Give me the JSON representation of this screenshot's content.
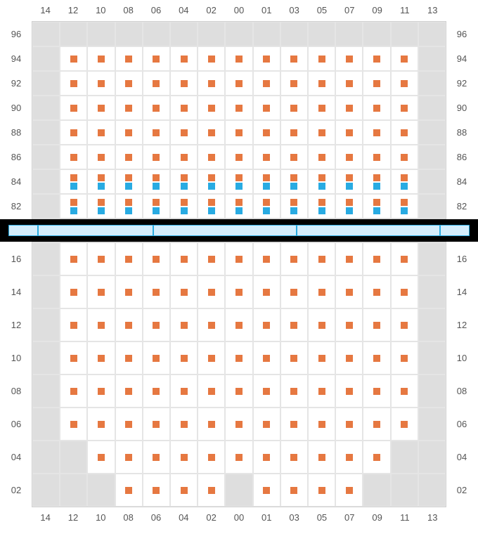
{
  "layout": {
    "cols": [
      "14",
      "12",
      "10",
      "08",
      "06",
      "04",
      "02",
      "00",
      "01",
      "03",
      "05",
      "07",
      "09",
      "11",
      "13"
    ],
    "colors": {
      "orange": "#e67841",
      "blue": "#29abe2",
      "bg": "#dedede",
      "cellBg": "#ffffff",
      "line": "#e5e5e5",
      "text": "#555555",
      "divider": "#000000",
      "stripFill": "#d4edfc"
    }
  },
  "upper": {
    "rowLabels": [
      "96",
      "94",
      "92",
      "90",
      "88",
      "86",
      "84",
      "82"
    ],
    "rows": [
      {
        "cells": [
          "e",
          "e",
          "e",
          "e",
          "e",
          "e",
          "e",
          "e",
          "e",
          "e",
          "e",
          "e",
          "e",
          "e",
          "e"
        ]
      },
      {
        "cells": [
          "e",
          "o",
          "o",
          "o",
          "o",
          "o",
          "o",
          "o",
          "o",
          "o",
          "o",
          "o",
          "o",
          "o",
          "e"
        ]
      },
      {
        "cells": [
          "e",
          "o",
          "o",
          "o",
          "o",
          "o",
          "o",
          "o",
          "o",
          "o",
          "o",
          "o",
          "o",
          "o",
          "e"
        ]
      },
      {
        "cells": [
          "e",
          "o",
          "o",
          "o",
          "o",
          "o",
          "o",
          "o",
          "o",
          "o",
          "o",
          "o",
          "o",
          "o",
          "e"
        ]
      },
      {
        "cells": [
          "e",
          "o",
          "o",
          "o",
          "o",
          "o",
          "o",
          "o",
          "o",
          "o",
          "o",
          "o",
          "o",
          "o",
          "e"
        ]
      },
      {
        "cells": [
          "e",
          "o",
          "o",
          "o",
          "o",
          "o",
          "o",
          "o",
          "o",
          "o",
          "o",
          "o",
          "o",
          "o",
          "e"
        ]
      },
      {
        "cells": [
          "e",
          "ob",
          "ob",
          "ob",
          "ob",
          "ob",
          "ob",
          "ob",
          "ob",
          "ob",
          "ob",
          "ob",
          "ob",
          "ob",
          "e"
        ]
      },
      {
        "cells": [
          "e",
          "ob",
          "ob",
          "ob",
          "ob",
          "ob",
          "ob",
          "ob",
          "ob",
          "ob",
          "ob",
          "ob",
          "ob",
          "ob",
          "e"
        ]
      }
    ]
  },
  "dividerSegments": [
    1,
    4,
    5,
    5,
    1
  ],
  "lower": {
    "rowLabels": [
      "16",
      "14",
      "12",
      "10",
      "08",
      "06",
      "04",
      "02"
    ],
    "rows": [
      {
        "cells": [
          "e",
          "o",
          "o",
          "o",
          "o",
          "o",
          "o",
          "o",
          "o",
          "o",
          "o",
          "o",
          "o",
          "o",
          "e"
        ]
      },
      {
        "cells": [
          "e",
          "o",
          "o",
          "o",
          "o",
          "o",
          "o",
          "o",
          "o",
          "o",
          "o",
          "o",
          "o",
          "o",
          "e"
        ]
      },
      {
        "cells": [
          "e",
          "o",
          "o",
          "o",
          "o",
          "o",
          "o",
          "o",
          "o",
          "o",
          "o",
          "o",
          "o",
          "o",
          "e"
        ]
      },
      {
        "cells": [
          "e",
          "o",
          "o",
          "o",
          "o",
          "o",
          "o",
          "o",
          "o",
          "o",
          "o",
          "o",
          "o",
          "o",
          "e"
        ]
      },
      {
        "cells": [
          "e",
          "o",
          "o",
          "o",
          "o",
          "o",
          "o",
          "o",
          "o",
          "o",
          "o",
          "o",
          "o",
          "o",
          "e"
        ]
      },
      {
        "cells": [
          "e",
          "o",
          "o",
          "o",
          "o",
          "o",
          "o",
          "o",
          "o",
          "o",
          "o",
          "o",
          "o",
          "o",
          "e"
        ]
      },
      {
        "cells": [
          "e",
          "e",
          "o",
          "o",
          "o",
          "o",
          "o",
          "o",
          "o",
          "o",
          "o",
          "o",
          "o",
          "e",
          "e"
        ]
      },
      {
        "cells": [
          "e",
          "e",
          "e",
          "o",
          "o",
          "o",
          "o",
          "e",
          "o",
          "o",
          "o",
          "o",
          "e",
          "e",
          "e"
        ]
      }
    ]
  }
}
